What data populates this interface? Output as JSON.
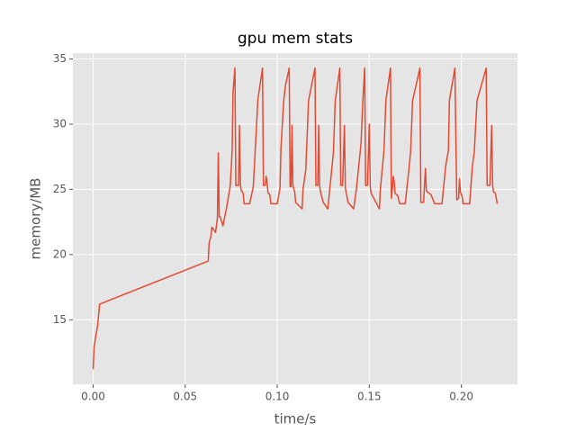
{
  "chart_data": {
    "type": "line",
    "title": "gpu mem stats",
    "x_label": "time/s",
    "y_label": "memory/MB",
    "x": [
      0.0,
      0.0005,
      0.0015,
      0.0025,
      0.0035,
      0.0625,
      0.063,
      0.064,
      0.0645,
      0.0665,
      0.0675,
      0.068,
      0.0685,
      0.069,
      0.0705,
      0.0725,
      0.0745,
      0.0755,
      0.076,
      0.077,
      0.0775,
      0.079,
      0.0795,
      0.08,
      0.0805,
      0.0815,
      0.082,
      0.085,
      0.087,
      0.088,
      0.0895,
      0.092,
      0.0925,
      0.0935,
      0.094,
      0.0945,
      0.095,
      0.096,
      0.0965,
      0.1,
      0.1015,
      0.102,
      0.1035,
      0.1045,
      0.1065,
      0.107,
      0.1075,
      0.108,
      0.1085,
      0.1095,
      0.11,
      0.1135,
      0.114,
      0.1155,
      0.117,
      0.1205,
      0.121,
      0.122,
      0.1225,
      0.123,
      0.1235,
      0.125,
      0.1275,
      0.1285,
      0.1305,
      0.1315,
      0.134,
      0.1345,
      0.1355,
      0.1365,
      0.137,
      0.1375,
      0.1385,
      0.1415,
      0.143,
      0.1455,
      0.1465,
      0.1475,
      0.148,
      0.149,
      0.15,
      0.1505,
      0.151,
      0.1525,
      0.1555,
      0.156,
      0.158,
      0.159,
      0.1615,
      0.162,
      0.1625,
      0.163,
      0.1635,
      0.164,
      0.1655,
      0.1665,
      0.1695,
      0.1715,
      0.1725,
      0.1735,
      0.1775,
      0.178,
      0.1795,
      0.1805,
      0.181,
      0.1815,
      0.1835,
      0.1855,
      0.1895,
      0.1915,
      0.193,
      0.1935,
      0.1965,
      0.1975,
      0.1985,
      0.199,
      0.1995,
      0.2005,
      0.201,
      0.2045,
      0.206,
      0.207,
      0.2085,
      0.2135,
      0.214,
      0.2155,
      0.2165,
      0.217,
      0.2175,
      0.2185,
      0.2195
    ],
    "series": [
      {
        "color": "#e24a33",
        "values": [
          11.2,
          12.9,
          13.8,
          14.6,
          16.2,
          19.5,
          20.9,
          21.4,
          22.1,
          21.7,
          22.8,
          27.8,
          22.9,
          22.9,
          22.2,
          23.6,
          25.3,
          28.0,
          32.5,
          34.3,
          25.3,
          25.3,
          29.9,
          25.3,
          24.9,
          24.7,
          23.9,
          23.9,
          25.2,
          27.9,
          31.9,
          34.3,
          25.3,
          25.3,
          26.0,
          25.5,
          24.7,
          24.6,
          23.9,
          23.9,
          25.1,
          28.1,
          31.8,
          33.0,
          34.3,
          25.2,
          25.2,
          29.9,
          25.3,
          24.8,
          24.0,
          23.5,
          25.0,
          26.5,
          31.8,
          34.3,
          25.3,
          25.3,
          29.9,
          25.3,
          24.8,
          24.0,
          23.5,
          25.0,
          27.8,
          31.8,
          34.3,
          25.3,
          25.3,
          29.9,
          25.1,
          24.7,
          24.0,
          23.5,
          25.0,
          28.5,
          31.8,
          34.3,
          25.3,
          25.3,
          30.0,
          25.2,
          24.7,
          24.3,
          23.5,
          25.0,
          28.0,
          31.8,
          34.3,
          24.3,
          25.0,
          26.0,
          25.6,
          24.7,
          24.5,
          23.9,
          23.9,
          26.5,
          28.0,
          31.8,
          34.3,
          24.0,
          24.0,
          26.6,
          24.9,
          24.8,
          24.6,
          23.9,
          23.9,
          26.8,
          28.0,
          31.8,
          34.3,
          24.2,
          24.3,
          25.8,
          24.8,
          24.4,
          23.9,
          23.9,
          26.8,
          27.8,
          31.8,
          34.3,
          25.3,
          25.3,
          29.9,
          25.3,
          24.8,
          24.7,
          23.9
        ]
      }
    ],
    "xlim": [
      -0.011,
      0.2305
    ],
    "ylim": [
      10.05,
      35.45
    ],
    "xticks": [
      {
        "value": 0,
        "label": "0.00"
      },
      {
        "value": 0.05,
        "label": "0.05"
      },
      {
        "value": 0.1,
        "label": "0.10"
      },
      {
        "value": 0.15,
        "label": "0.15"
      },
      {
        "value": 0.2,
        "label": "0.20"
      }
    ],
    "yticks": [
      15,
      20,
      25,
      30,
      35
    ],
    "grid": true,
    "background": "#e5e5e5"
  }
}
